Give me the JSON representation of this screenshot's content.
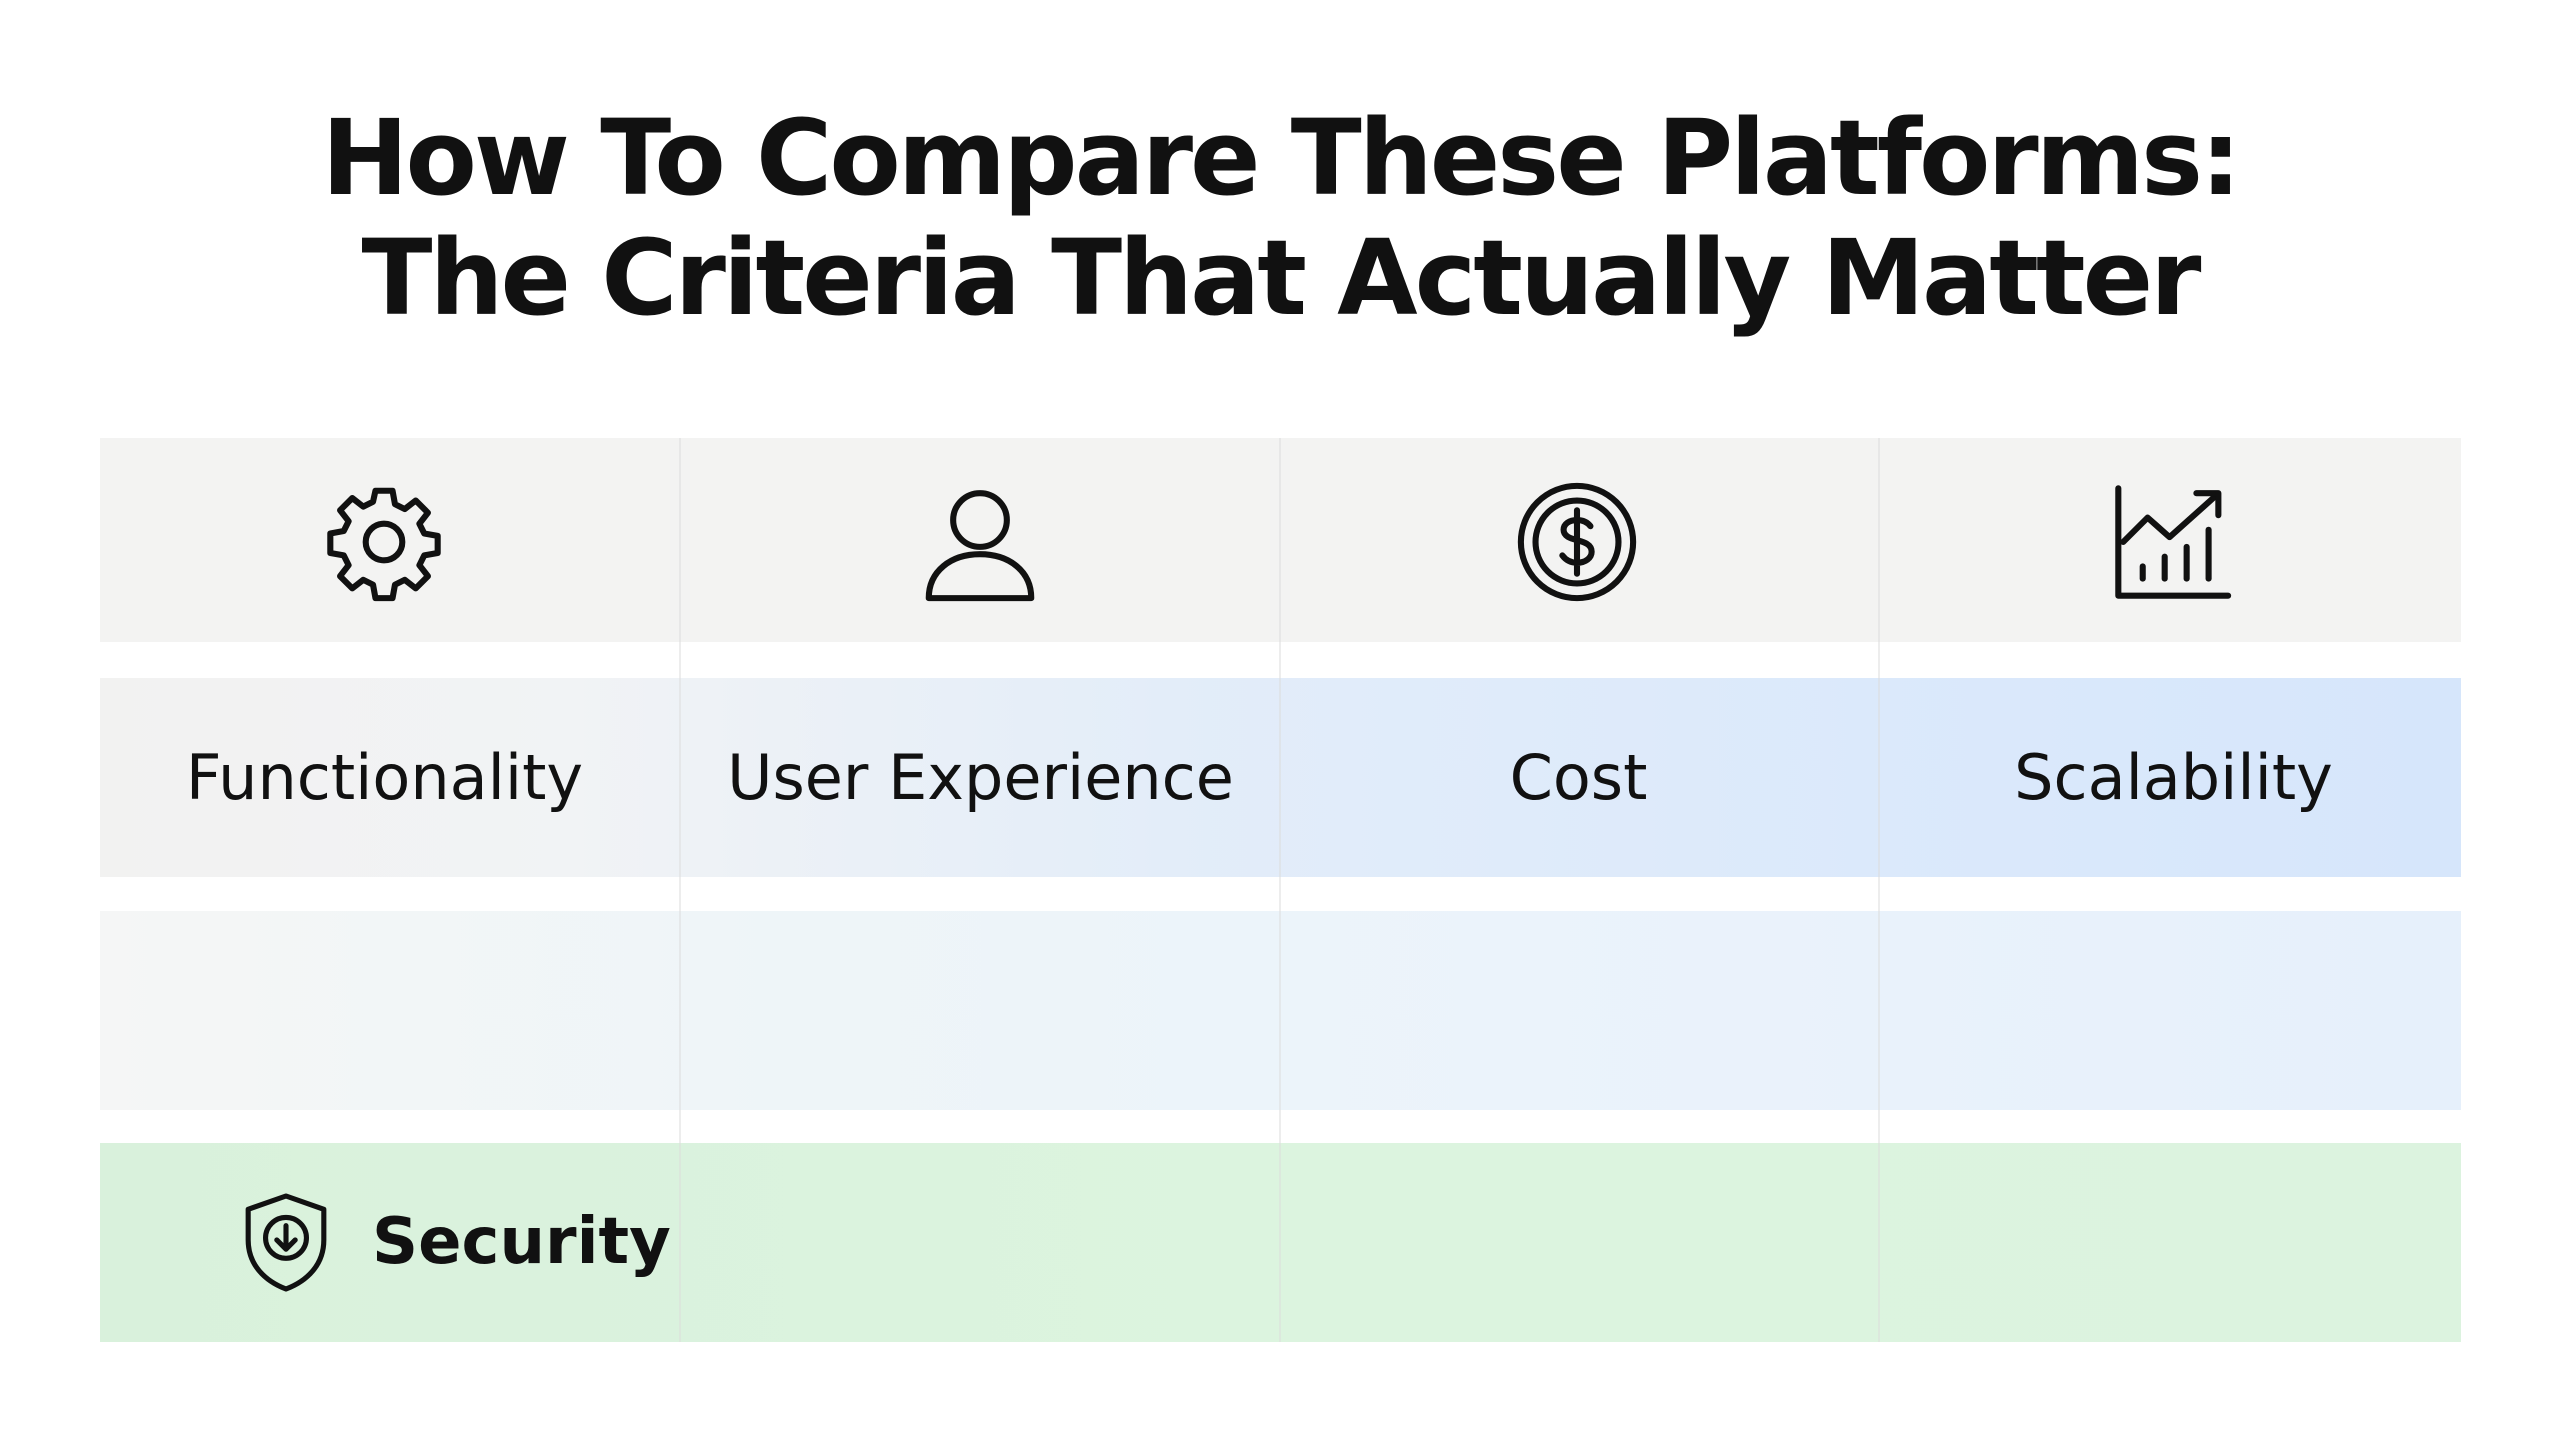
{
  "header": {
    "title_lines": [
      "How To Compare These Platforms:",
      "The Criteria That Actually Matter"
    ]
  },
  "criteria": [
    "Functionality",
    "User Experience",
    "Cost",
    "Scalability"
  ],
  "footer_row": {
    "label": "Security"
  }
}
